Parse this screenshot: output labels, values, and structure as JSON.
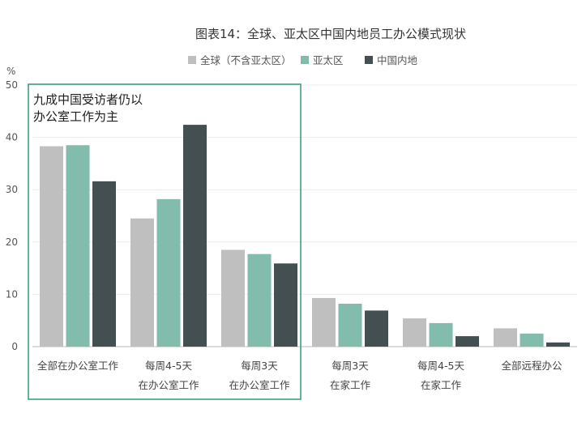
{
  "chart_data": {
    "type": "bar",
    "title": "图表14：全球、亚太区中国内地员工办公模式现状",
    "ylabel": "%",
    "ylim": [
      0,
      50
    ],
    "yticks": [
      0,
      10,
      20,
      30,
      40,
      50
    ],
    "grid": true,
    "legend_position": "top",
    "categories": [
      [
        "全部在办公室工作"
      ],
      [
        "每周4-5天",
        "在办公室工作"
      ],
      [
        "每周3天",
        "在办公室工作"
      ],
      [
        "每周3天",
        "在家工作"
      ],
      [
        "每周4-5天",
        "在家工作"
      ],
      [
        "全部远程办公"
      ]
    ],
    "series": [
      {
        "name": "全球（不含亚太区）",
        "color": "#bfbfbf",
        "values": [
          38.3,
          24.5,
          18.5,
          9.3,
          5.4,
          3.5
        ]
      },
      {
        "name": "亚太区",
        "color": "#82bcad",
        "values": [
          38.5,
          28.2,
          17.7,
          8.2,
          4.5,
          2.5
        ]
      },
      {
        "name": "中国内地",
        "color": "#434f50",
        "values": [
          31.6,
          42.4,
          15.9,
          6.9,
          2.0,
          0.8
        ]
      }
    ],
    "annotation": {
      "lines": [
        "九成中国受访者仍以",
        "办公室工作为主"
      ],
      "highlight_categories": [
        0,
        1,
        2
      ],
      "color": "#2e9b6e"
    }
  }
}
